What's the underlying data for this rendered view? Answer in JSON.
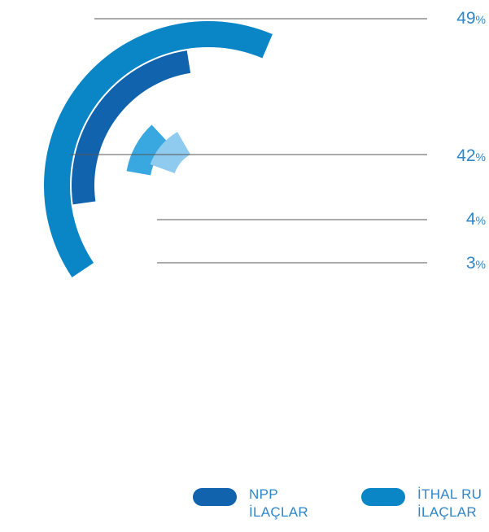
{
  "chart_data": {
    "type": "radial-bar",
    "series": [
      {
        "value": 49,
        "label": "49",
        "unit": "%",
        "color": "#0a86c7"
      },
      {
        "value": 42,
        "label": "42",
        "unit": "%",
        "color": "#1163ae"
      },
      {
        "value": 4,
        "label": "4",
        "unit": "%",
        "color": "#8ecbef"
      },
      {
        "value": 3,
        "label": "3",
        "unit": "%",
        "color": "#3aa8e0"
      }
    ],
    "legend": [
      {
        "line1": "NPP",
        "line2": "İLAÇLAR",
        "color": "#1163ae"
      },
      {
        "line1": "İTHAL RU",
        "line2": "İLAÇLAR",
        "color": "#0a86c7"
      }
    ]
  }
}
